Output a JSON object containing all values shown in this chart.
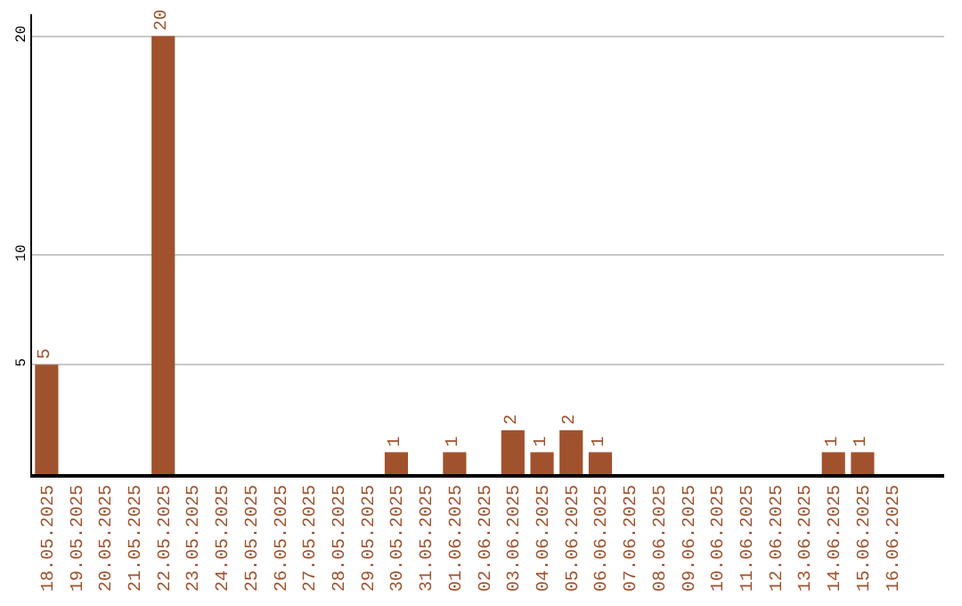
{
  "chart_data": {
    "type": "bar",
    "categories": [
      "18.05.2025",
      "19.05.2025",
      "20.05.2025",
      "21.05.2025",
      "22.05.2025",
      "23.05.2025",
      "24.05.2025",
      "25.05.2025",
      "26.05.2025",
      "27.05.2025",
      "28.05.2025",
      "29.05.2025",
      "30.05.2025",
      "31.05.2025",
      "01.06.2025",
      "02.06.2025",
      "03.06.2025",
      "04.06.2025",
      "05.06.2025",
      "06.06.2025",
      "07.06.2025",
      "08.06.2025",
      "09.06.2025",
      "10.06.2025",
      "11.06.2025",
      "12.06.2025",
      "13.06.2025",
      "14.06.2025",
      "15.06.2025",
      "16.06.2025"
    ],
    "values": [
      5,
      0,
      0,
      0,
      20,
      0,
      0,
      0,
      0,
      0,
      0,
      0,
      1,
      0,
      1,
      0,
      2,
      1,
      2,
      1,
      0,
      0,
      0,
      0,
      0,
      0,
      0,
      1,
      1,
      0
    ],
    "value_labels": [
      "5",
      null,
      null,
      null,
      "20",
      null,
      null,
      null,
      null,
      null,
      null,
      null,
      "1",
      null,
      "1",
      null,
      "2",
      "1",
      "2",
      "1",
      null,
      null,
      null,
      null,
      null,
      null,
      null,
      "1",
      "1",
      null
    ],
    "color": "#a0522d",
    "ylim": [
      0,
      21
    ],
    "yticks": [
      5,
      10,
      20
    ],
    "grid": "y"
  }
}
